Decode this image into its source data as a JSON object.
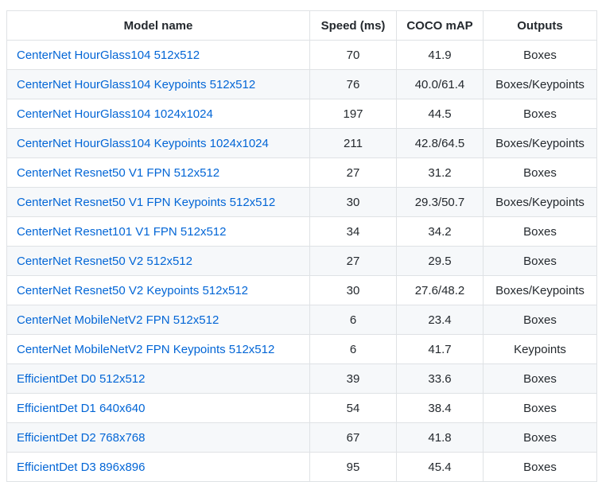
{
  "table": {
    "headers": {
      "model": "Model name",
      "speed": "Speed (ms)",
      "map": "COCO mAP",
      "outputs": "Outputs"
    },
    "rows": [
      {
        "name": "CenterNet HourGlass104 512x512",
        "speed": "70",
        "map": "41.9",
        "outputs": "Boxes"
      },
      {
        "name": "CenterNet HourGlass104 Keypoints 512x512",
        "speed": "76",
        "map": "40.0/61.4",
        "outputs": "Boxes/Keypoints"
      },
      {
        "name": "CenterNet HourGlass104 1024x1024",
        "speed": "197",
        "map": "44.5",
        "outputs": "Boxes"
      },
      {
        "name": "CenterNet HourGlass104 Keypoints 1024x1024",
        "speed": "211",
        "map": "42.8/64.5",
        "outputs": "Boxes/Keypoints"
      },
      {
        "name": "CenterNet Resnet50 V1 FPN 512x512",
        "speed": "27",
        "map": "31.2",
        "outputs": "Boxes"
      },
      {
        "name": "CenterNet Resnet50 V1 FPN Keypoints 512x512",
        "speed": "30",
        "map": "29.3/50.7",
        "outputs": "Boxes/Keypoints"
      },
      {
        "name": "CenterNet Resnet101 V1 FPN 512x512",
        "speed": "34",
        "map": "34.2",
        "outputs": "Boxes"
      },
      {
        "name": "CenterNet Resnet50 V2 512x512",
        "speed": "27",
        "map": "29.5",
        "outputs": "Boxes"
      },
      {
        "name": "CenterNet Resnet50 V2 Keypoints 512x512",
        "speed": "30",
        "map": "27.6/48.2",
        "outputs": "Boxes/Keypoints"
      },
      {
        "name": "CenterNet MobileNetV2 FPN 512x512",
        "speed": "6",
        "map": "23.4",
        "outputs": "Boxes"
      },
      {
        "name": "CenterNet MobileNetV2 FPN Keypoints 512x512",
        "speed": "6",
        "map": "41.7",
        "outputs": "Keypoints"
      },
      {
        "name": "EfficientDet D0 512x512",
        "speed": "39",
        "map": "33.6",
        "outputs": "Boxes"
      },
      {
        "name": "EfficientDet D1 640x640",
        "speed": "54",
        "map": "38.4",
        "outputs": "Boxes"
      },
      {
        "name": "EfficientDet D2 768x768",
        "speed": "67",
        "map": "41.8",
        "outputs": "Boxes"
      },
      {
        "name": "EfficientDet D3 896x896",
        "speed": "95",
        "map": "45.4",
        "outputs": "Boxes"
      }
    ]
  },
  "colors": {
    "link": "#0366d6",
    "border": "#dfe2e5",
    "stripe": "#f6f8fa",
    "text": "#24292e"
  }
}
